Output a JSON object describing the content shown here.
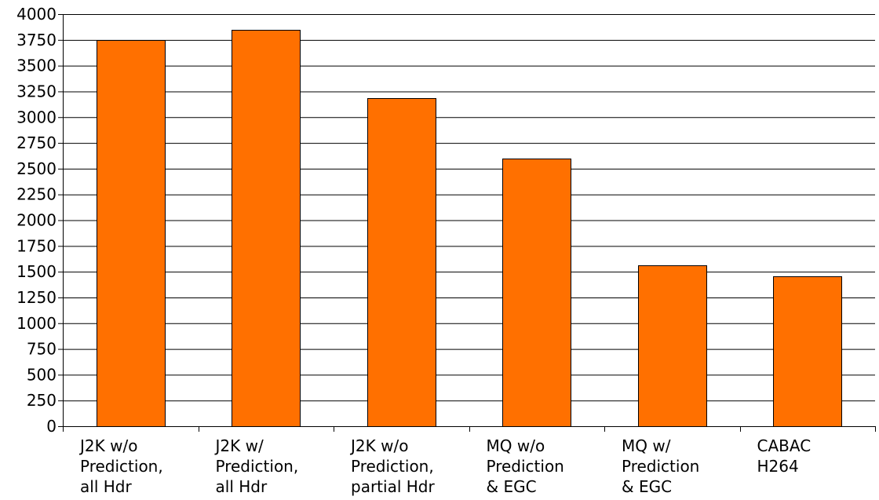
{
  "chart_data": {
    "type": "bar",
    "categories": [
      [
        "J2K w/o",
        "Prediction,",
        "all Hdr"
      ],
      [
        "J2K w/",
        "Prediction,",
        "all Hdr"
      ],
      [
        "J2K w/o",
        "Prediction,",
        "partial Hdr"
      ],
      [
        "MQ w/o",
        "Prediction",
        "& EGC"
      ],
      [
        "MQ w/",
        "Prediction",
        "& EGC"
      ],
      [
        "CABAC",
        "H264"
      ]
    ],
    "values": [
      3745,
      3845,
      3185,
      2595,
      1560,
      1455
    ],
    "ylim": [
      0,
      4000
    ],
    "yticks": [
      0,
      250,
      500,
      750,
      1000,
      1250,
      1500,
      1750,
      2000,
      2250,
      2500,
      2750,
      3000,
      3250,
      3500,
      3750,
      4000
    ],
    "title": "",
    "xlabel": "",
    "ylabel": "",
    "grid": true,
    "legend": "none",
    "colors": {
      "bar_fill": "#FF7000",
      "bar_stroke": "#000000",
      "grid": "#000000",
      "axis": "#000000"
    }
  }
}
